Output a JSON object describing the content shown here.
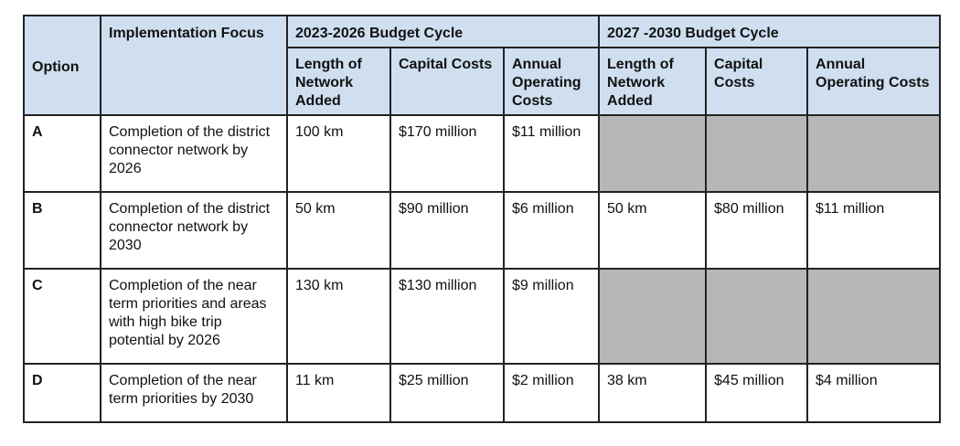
{
  "table": {
    "headers": {
      "option": "Option",
      "focus": "Implementation Focus",
      "cycle1": "2023-2026 Budget Cycle",
      "cycle2": "2027 -2030 Budget Cycle",
      "sub": [
        "Length of Network Added",
        "Capital Costs",
        "Annual Operating Costs",
        "Length of Network Added",
        "Capital Costs",
        "Annual Operating Costs"
      ]
    },
    "rows": [
      {
        "option": "A",
        "focus": "Completion of the district connector network by 2026",
        "c1_length": "100 km",
        "c1_capital": "$170 million",
        "c1_operating": "$11 million",
        "c2_length": "",
        "c2_capital": "",
        "c2_operating": ""
      },
      {
        "option": "B",
        "focus": "Completion of the district connector network by 2030",
        "c1_length": "50 km",
        "c1_capital": "$90 million",
        "c1_operating": "$6 million",
        "c2_length": "50 km",
        "c2_capital": "$80 million",
        "c2_operating": "$11 million"
      },
      {
        "option": "C",
        "focus": "Completion of the near term priorities and areas with high bike trip potential by 2026",
        "c1_length": "130 km",
        "c1_capital": "$130 million",
        "c1_operating": "$9 million",
        "c2_length": "",
        "c2_capital": "",
        "c2_operating": ""
      },
      {
        "option": "D",
        "focus": "Completion of the near term priorities by 2030",
        "c1_length": "11 km",
        "c1_capital": "$25 million",
        "c1_operating": "$2 million",
        "c2_length": "38 km",
        "c2_capital": "$45 million",
        "c2_operating": "$4 million"
      }
    ]
  },
  "colors": {
    "header_fill": "#cfdff0",
    "shaded_cell": "#b7b7b7",
    "border": "#222222"
  }
}
